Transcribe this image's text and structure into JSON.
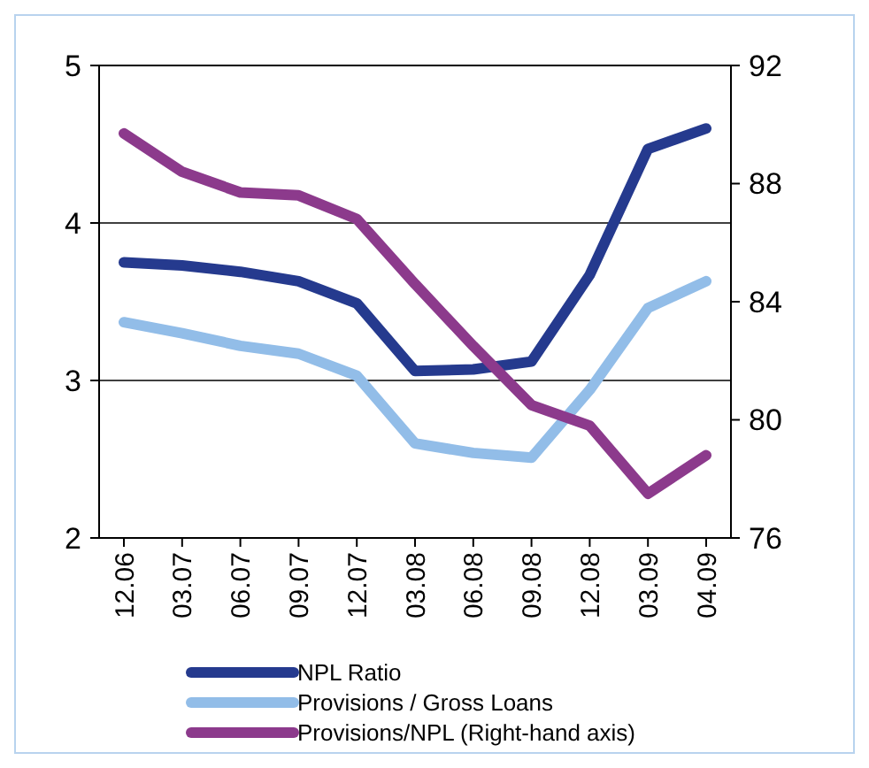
{
  "chart_data": {
    "type": "line",
    "categories": [
      "12.06",
      "03.07",
      "06.07",
      "09.07",
      "12.07",
      "03.08",
      "06.08",
      "09.08",
      "12.08",
      "03.09",
      "04.09"
    ],
    "series": [
      {
        "name": "NPL Ratio",
        "color": "#253a8e",
        "values": [
          3.75,
          3.73,
          3.69,
          3.63,
          3.49,
          3.06,
          3.07,
          3.12,
          3.67,
          4.47,
          4.6
        ]
      },
      {
        "name": "Provisions / Gross Loans",
        "color": "#92bde8",
        "values": [
          3.37,
          3.3,
          3.22,
          3.17,
          3.03,
          2.6,
          2.54,
          2.51,
          2.94,
          3.46,
          3.63
        ]
      },
      {
        "name": "Provisions/NPL (Right-hand axis)",
        "color": "#8c3a8c",
        "axis": "y2",
        "values": [
          89.7,
          88.4,
          87.7,
          87.6,
          86.8,
          84.6,
          82.5,
          80.5,
          79.8,
          77.5,
          78.8
        ]
      }
    ],
    "ylim": [
      2,
      5
    ],
    "yticks": [
      2,
      3,
      4,
      5
    ],
    "y2lim": [
      76,
      92
    ],
    "y2ticks": [
      76,
      80,
      84,
      88,
      92
    ],
    "grid": "y",
    "legend": "bottom",
    "marker": "none",
    "line_style": "solid"
  }
}
